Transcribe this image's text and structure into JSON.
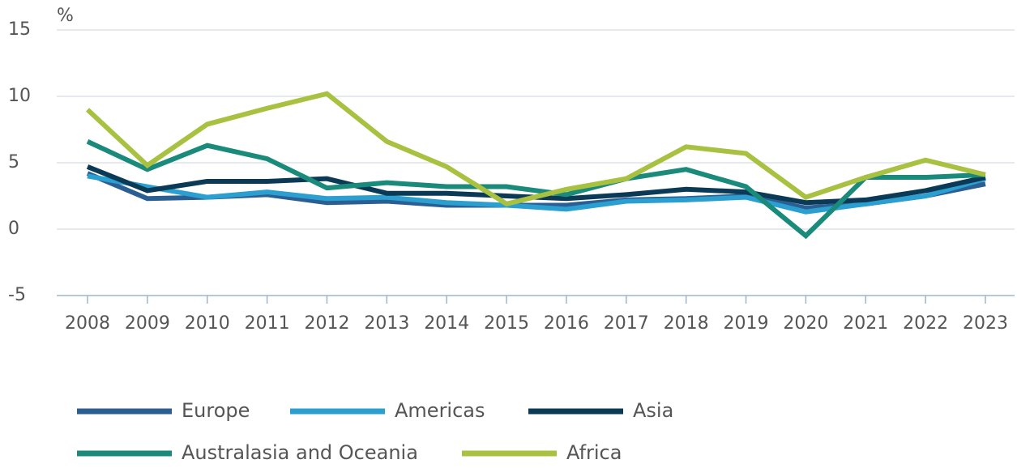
{
  "chart_data": {
    "type": "line",
    "y_label": "%",
    "categories": [
      "2008",
      "2009",
      "2010",
      "2011",
      "2012",
      "2013",
      "2014",
      "2015",
      "2016",
      "2017",
      "2018",
      "2019",
      "2020",
      "2021",
      "2022",
      "2023"
    ],
    "series": [
      {
        "name": "Europe",
        "color": "#2b5f93",
        "values": [
          4.2,
          2.3,
          2.4,
          2.6,
          2.0,
          2.1,
          1.8,
          1.8,
          1.8,
          2.2,
          2.3,
          2.5,
          1.6,
          1.9,
          2.5,
          3.4
        ]
      },
      {
        "name": "Americas",
        "color": "#2b9fd0",
        "values": [
          4.0,
          3.2,
          2.4,
          2.8,
          2.3,
          2.4,
          2.0,
          1.8,
          1.5,
          2.1,
          2.2,
          2.4,
          1.3,
          1.9,
          2.5,
          3.8
        ]
      },
      {
        "name": "Asia",
        "color": "#0b3a56",
        "values": [
          4.7,
          2.9,
          3.6,
          3.6,
          3.8,
          2.7,
          2.7,
          2.5,
          2.3,
          2.6,
          3.0,
          2.8,
          2.0,
          2.2,
          2.9,
          3.9
        ]
      },
      {
        "name": "Australasia and Oceania",
        "color": "#1a8a7b",
        "values": [
          6.6,
          4.5,
          6.3,
          5.3,
          3.1,
          3.5,
          3.2,
          3.2,
          2.6,
          3.8,
          4.5,
          3.2,
          -0.5,
          3.9,
          3.9,
          4.1
        ]
      },
      {
        "name": "Africa",
        "color": "#a8c140",
        "values": [
          9.0,
          4.8,
          7.9,
          9.1,
          10.2,
          6.6,
          4.7,
          1.9,
          3.0,
          3.8,
          6.2,
          5.7,
          2.4,
          3.9,
          5.2,
          4.1
        ]
      }
    ],
    "ylim": [
      -5,
      15
    ],
    "yticks": [
      -5,
      0,
      5,
      10,
      15
    ],
    "grid": true
  }
}
